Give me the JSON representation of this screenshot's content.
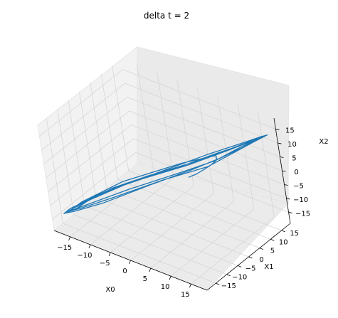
{
  "chart_data": {
    "type": "line",
    "projection": "3d",
    "title": "delta t = 2",
    "xlabel": "X0",
    "ylabel": "X1",
    "zlabel": "X2",
    "xlim": [
      -19,
      19
    ],
    "ylim": [
      -19,
      19
    ],
    "zlim": [
      -19,
      19
    ],
    "xticks": [
      "−15",
      "−10",
      "−5",
      "0",
      "5",
      "10",
      "15"
    ],
    "yticks": [
      "−15",
      "−10",
      "−5",
      "0",
      "5",
      "10",
      "15"
    ],
    "zticks": [
      "−15",
      "−10",
      "−5",
      "0",
      "5",
      "10",
      "15"
    ],
    "grid": true,
    "line_color": "#1f77b4",
    "series": [
      {
        "x": [
          4.6,
          6.0,
          7.4,
          8.5,
          9.0,
          8.0,
          2.0,
          -8.0,
          -14.5,
          -16.0,
          -15.0,
          -13.0,
          -9.0,
          -3.0,
          5.0,
          12.0,
          16.0,
          17.0,
          16.0,
          13.0,
          9.0,
          3.0,
          -6.0,
          -13.0,
          -16.5,
          -16.0,
          -14.0,
          -10.0,
          -4.0,
          4.0,
          11.0,
          15.5,
          17.5,
          16.5,
          14.0,
          10.0,
          5.0,
          -2.0,
          -10.0,
          -15.0,
          -17.0,
          -16.0,
          -12.0,
          -6.0,
          2.0,
          9.0,
          14.5,
          17.0,
          17.0,
          15.0,
          12.0,
          8.0,
          0.0,
          -8.0,
          -14.0,
          -16.5,
          -15.5,
          -12.5,
          -7.0,
          0.0,
          7.0,
          13.0,
          16.5,
          17.5
        ],
        "y": [
          2.7,
          4.0,
          5.6,
          7.0,
          8.5,
          10.0,
          5.0,
          -5.0,
          -13.0,
          -16.0,
          -15.0,
          -12.0,
          -8.0,
          -2.0,
          5.0,
          12.0,
          16.0,
          17.0,
          16.0,
          13.0,
          8.0,
          2.0,
          -6.0,
          -13.0,
          -16.5,
          -16.0,
          -13.0,
          -9.0,
          -3.0,
          4.0,
          11.0,
          15.5,
          17.5,
          16.5,
          14.0,
          9.0,
          4.0,
          -3.0,
          -11.0,
          -15.5,
          -17.0,
          -15.5,
          -11.0,
          -5.0,
          2.0,
          9.0,
          14.5,
          17.0,
          17.0,
          15.0,
          11.0,
          6.0,
          -1.0,
          -9.0,
          -14.5,
          -16.5,
          -15.0,
          -12.0,
          -6.0,
          1.0,
          8.0,
          13.5,
          16.5,
          17.5
        ],
        "z": [
          -0.2,
          1.0,
          2.6,
          4.0,
          5.0,
          5.0,
          2.0,
          -4.0,
          -10.0,
          -12.0,
          -11.5,
          -9.0,
          -5.0,
          -1.0,
          4.0,
          9.0,
          12.0,
          12.5,
          11.5,
          9.0,
          5.0,
          1.0,
          -5.0,
          -10.0,
          -12.5,
          -12.0,
          -9.5,
          -6.0,
          -2.0,
          3.0,
          8.0,
          11.5,
          13.0,
          12.0,
          9.5,
          6.0,
          2.0,
          -3.0,
          -9.0,
          -12.0,
          -13.0,
          -11.5,
          -8.0,
          -3.0,
          2.0,
          7.0,
          10.5,
          12.5,
          12.5,
          10.5,
          7.5,
          3.5,
          -1.5,
          -7.0,
          -11.0,
          -12.5,
          -11.5,
          -8.5,
          -4.0,
          1.0,
          6.0,
          10.0,
          12.5,
          13.0
        ]
      }
    ]
  }
}
